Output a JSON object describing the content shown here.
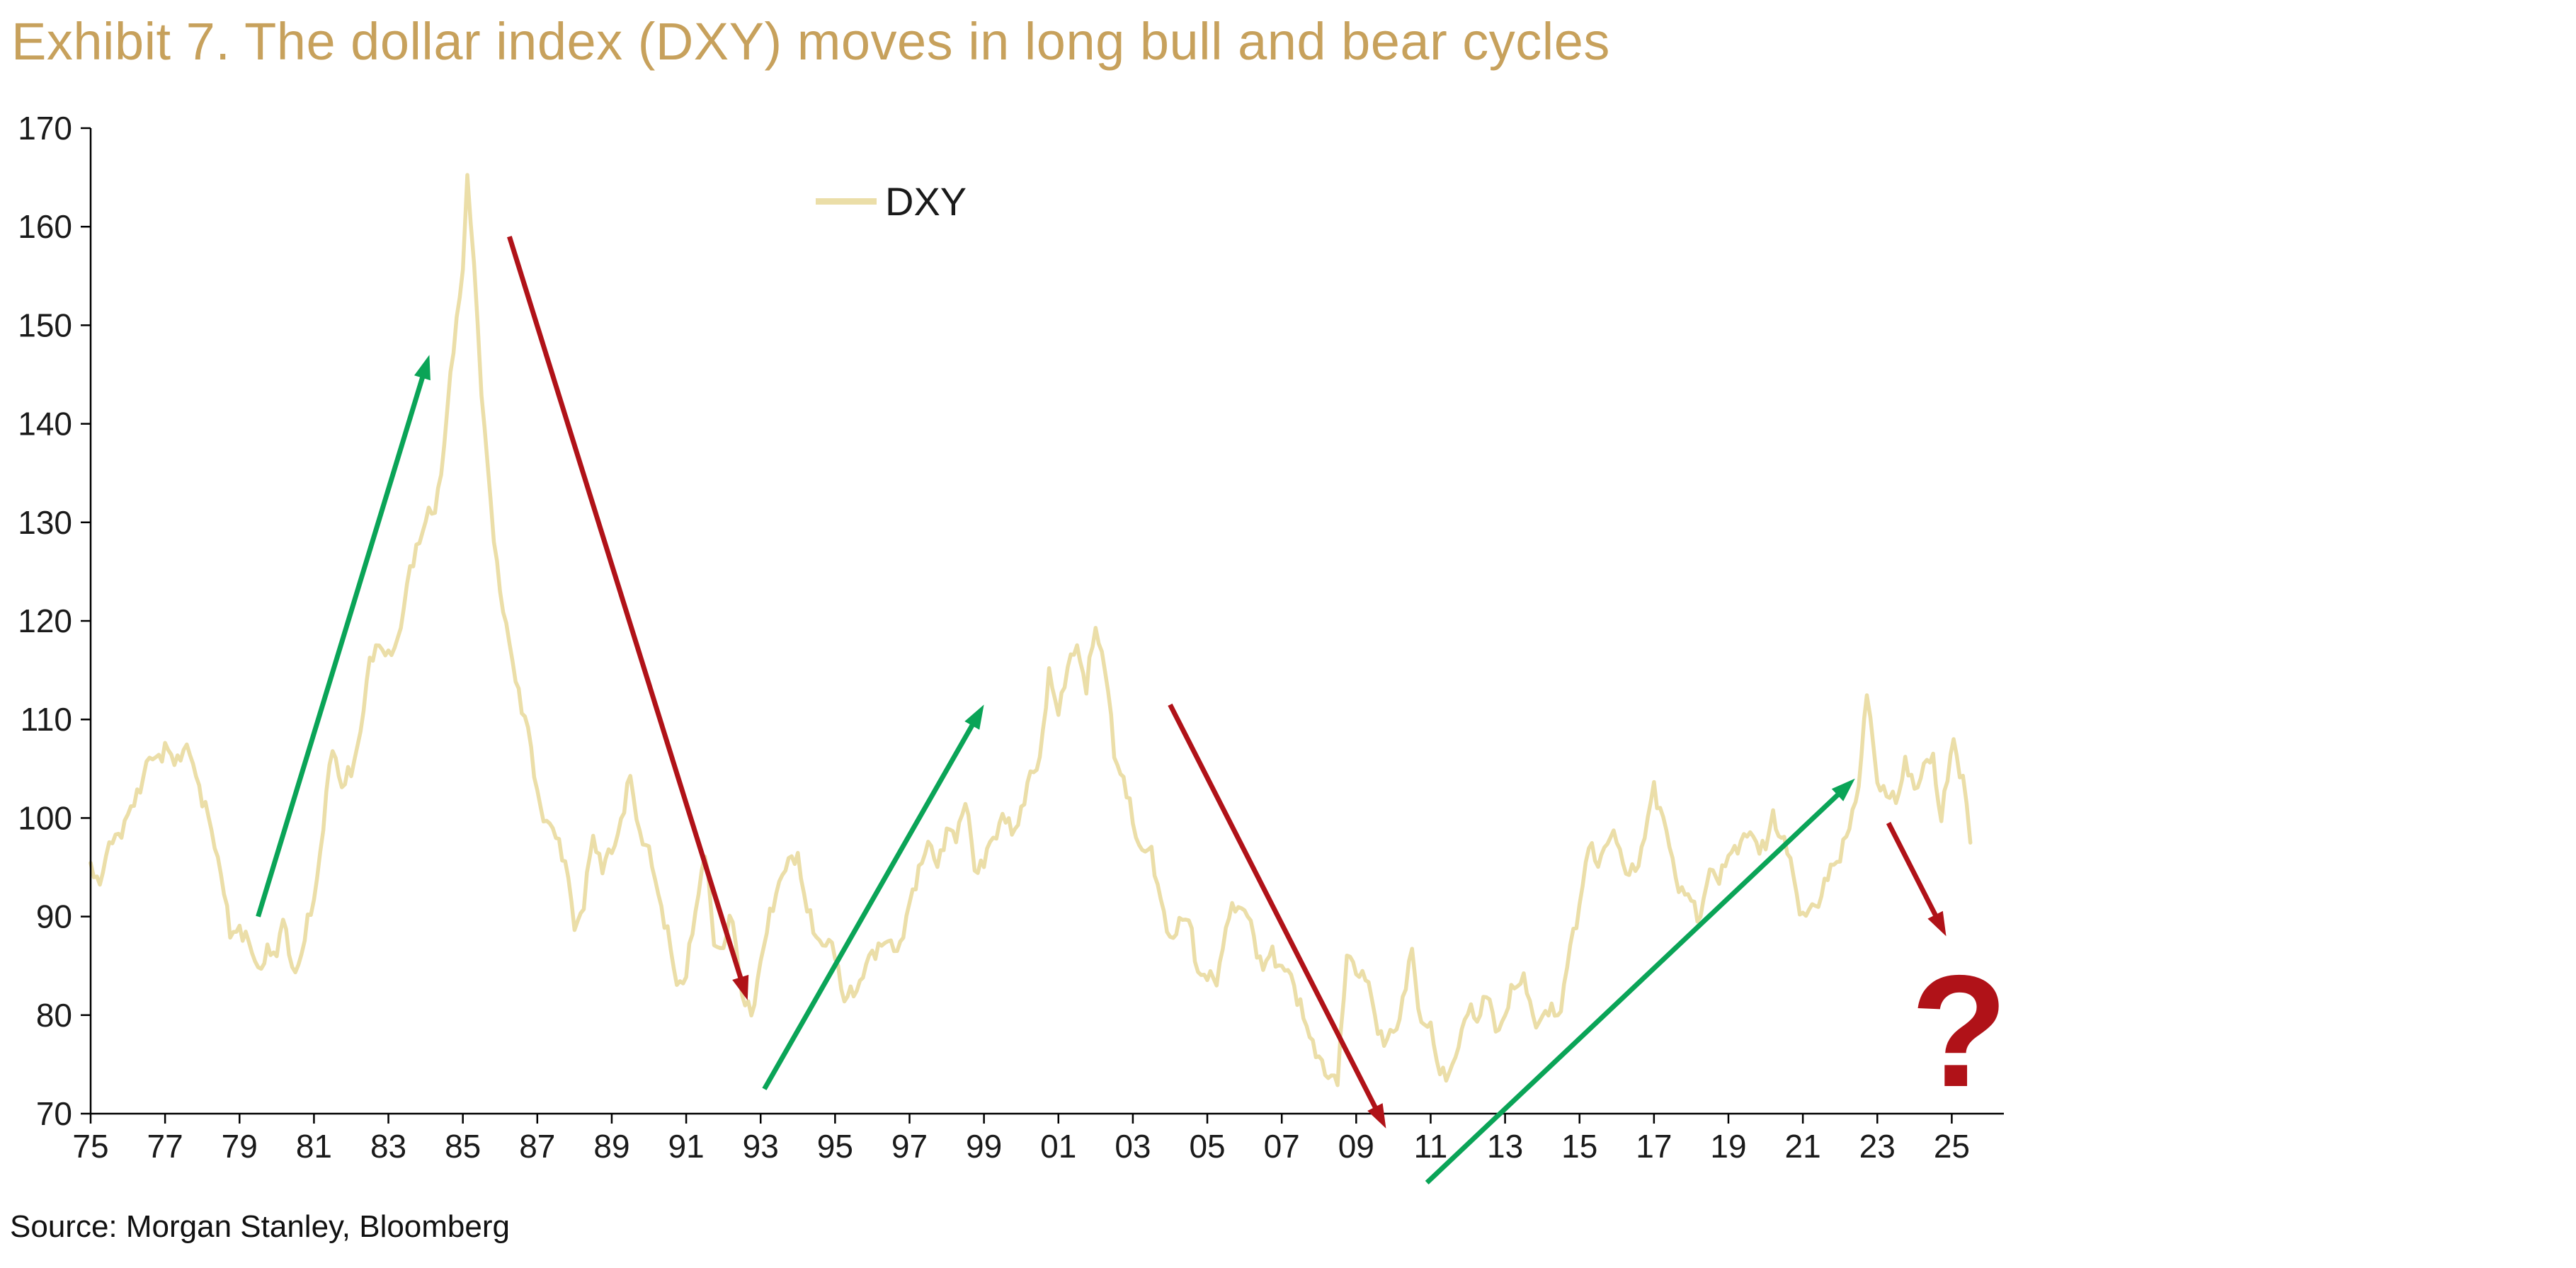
{
  "title": "Exhibit 7. The dollar index (DXY) moves in long bull and bear cycles",
  "source": "Source: Morgan Stanley, Bloomberg",
  "legend": {
    "label": "DXY"
  },
  "colors": {
    "title": "#C7A15C",
    "line": "#EBDEA8",
    "bull": "#0AA457",
    "bear": "#B01218",
    "axis": "#000000",
    "text": "#1A1A1A"
  },
  "chart_data": {
    "type": "line",
    "title": "Exhibit 7. The dollar index (DXY) moves in long bull and bear cycles",
    "xlabel": "",
    "ylabel": "",
    "xlim": [
      1975,
      2026.4
    ],
    "ylim": [
      70,
      170
    ],
    "grid": false,
    "legend_position": "top-center",
    "x_ticks": [
      "75",
      "77",
      "79",
      "81",
      "83",
      "85",
      "87",
      "89",
      "91",
      "93",
      "95",
      "97",
      "99",
      "01",
      "03",
      "05",
      "07",
      "09",
      "11",
      "13",
      "15",
      "17",
      "19",
      "21",
      "23",
      "25"
    ],
    "x_tick_years": [
      1975,
      1977,
      1979,
      1981,
      1983,
      1985,
      1987,
      1989,
      1991,
      1993,
      1995,
      1997,
      1999,
      2001,
      2003,
      2005,
      2007,
      2009,
      2011,
      2013,
      2015,
      2017,
      2019,
      2021,
      2023,
      2025
    ],
    "y_ticks": [
      70,
      80,
      90,
      100,
      110,
      120,
      130,
      140,
      150,
      160,
      170
    ],
    "series": [
      {
        "name": "DXY",
        "points": [
          [
            1975.0,
            95.0
          ],
          [
            1975.17,
            93.2
          ],
          [
            1975.33,
            94.0
          ],
          [
            1975.5,
            96.5
          ],
          [
            1975.67,
            98.5
          ],
          [
            1975.83,
            99.5
          ],
          [
            1976.0,
            100.5
          ],
          [
            1976.25,
            102.5
          ],
          [
            1976.5,
            104.5
          ],
          [
            1976.75,
            106.0
          ],
          [
            1977.0,
            107.5
          ],
          [
            1977.25,
            106.3
          ],
          [
            1977.5,
            107.0
          ],
          [
            1977.75,
            104.8
          ],
          [
            1978.0,
            102.0
          ],
          [
            1978.25,
            99.0
          ],
          [
            1978.5,
            95.5
          ],
          [
            1978.75,
            87.5
          ],
          [
            1979.0,
            88.5
          ],
          [
            1979.25,
            86.8
          ],
          [
            1979.5,
            85.6
          ],
          [
            1979.75,
            86.5
          ],
          [
            1980.0,
            86.0
          ],
          [
            1980.17,
            89.8
          ],
          [
            1980.33,
            85.0
          ],
          [
            1980.5,
            84.3
          ],
          [
            1980.75,
            88.5
          ],
          [
            1981.0,
            92.0
          ],
          [
            1981.25,
            99.0
          ],
          [
            1981.5,
            106.5
          ],
          [
            1981.75,
            103.5
          ],
          [
            1982.0,
            105.0
          ],
          [
            1982.25,
            109.5
          ],
          [
            1982.5,
            115.0
          ],
          [
            1982.75,
            117.5
          ],
          [
            1983.0,
            116.0
          ],
          [
            1983.25,
            119.0
          ],
          [
            1983.5,
            123.5
          ],
          [
            1983.75,
            127.0
          ],
          [
            1984.0,
            129.5
          ],
          [
            1984.25,
            131.5
          ],
          [
            1984.5,
            138.5
          ],
          [
            1984.75,
            148.0
          ],
          [
            1985.0,
            155.5
          ],
          [
            1985.12,
            163.5
          ],
          [
            1985.3,
            156.0
          ],
          [
            1985.5,
            144.0
          ],
          [
            1985.75,
            132.0
          ],
          [
            1986.0,
            123.5
          ],
          [
            1986.25,
            116.5
          ],
          [
            1986.5,
            112.5
          ],
          [
            1986.75,
            109.0
          ],
          [
            1987.0,
            103.5
          ],
          [
            1987.25,
            99.0
          ],
          [
            1987.5,
            98.0
          ],
          [
            1987.75,
            95.0
          ],
          [
            1988.0,
            89.5
          ],
          [
            1988.25,
            92.0
          ],
          [
            1988.5,
            98.0
          ],
          [
            1988.75,
            94.5
          ],
          [
            1989.0,
            96.0
          ],
          [
            1989.25,
            100.5
          ],
          [
            1989.5,
            104.5
          ],
          [
            1989.75,
            98.5
          ],
          [
            1990.0,
            95.5
          ],
          [
            1990.25,
            92.5
          ],
          [
            1990.5,
            88.5
          ],
          [
            1990.75,
            84.0
          ],
          [
            1991.0,
            83.5
          ],
          [
            1991.25,
            90.0
          ],
          [
            1991.5,
            96.5
          ],
          [
            1991.75,
            88.0
          ],
          [
            1992.0,
            87.5
          ],
          [
            1992.25,
            89.5
          ],
          [
            1992.5,
            81.5
          ],
          [
            1992.75,
            79.5
          ],
          [
            1993.0,
            86.5
          ],
          [
            1993.25,
            90.0
          ],
          [
            1993.5,
            93.5
          ],
          [
            1993.75,
            94.5
          ],
          [
            1994.0,
            96.5
          ],
          [
            1994.25,
            91.0
          ],
          [
            1994.5,
            88.5
          ],
          [
            1994.75,
            86.5
          ],
          [
            1995.0,
            86.0
          ],
          [
            1995.25,
            81.5
          ],
          [
            1995.5,
            83.0
          ],
          [
            1995.75,
            84.5
          ],
          [
            1996.0,
            85.5
          ],
          [
            1996.25,
            87.0
          ],
          [
            1996.5,
            87.0
          ],
          [
            1996.75,
            88.0
          ],
          [
            1997.0,
            91.0
          ],
          [
            1997.25,
            94.5
          ],
          [
            1997.5,
            96.5
          ],
          [
            1997.75,
            96.0
          ],
          [
            1998.0,
            99.0
          ],
          [
            1998.25,
            98.5
          ],
          [
            1998.5,
            101.0
          ],
          [
            1998.75,
            94.5
          ],
          [
            1999.0,
            96.0
          ],
          [
            1999.25,
            98.5
          ],
          [
            1999.5,
            100.5
          ],
          [
            1999.75,
            97.5
          ],
          [
            2000.0,
            100.5
          ],
          [
            2000.25,
            104.5
          ],
          [
            2000.5,
            107.0
          ],
          [
            2000.75,
            114.0
          ],
          [
            2001.0,
            110.5
          ],
          [
            2001.25,
            114.5
          ],
          [
            2001.5,
            118.5
          ],
          [
            2001.75,
            113.5
          ],
          [
            2002.0,
            119.5
          ],
          [
            2002.25,
            114.5
          ],
          [
            2002.5,
            106.5
          ],
          [
            2002.75,
            104.5
          ],
          [
            2003.0,
            100.0
          ],
          [
            2003.25,
            96.5
          ],
          [
            2003.5,
            95.5
          ],
          [
            2003.75,
            92.0
          ],
          [
            2004.0,
            87.5
          ],
          [
            2004.25,
            90.5
          ],
          [
            2004.5,
            89.0
          ],
          [
            2004.75,
            84.0
          ],
          [
            2005.0,
            83.5
          ],
          [
            2005.25,
            84.5
          ],
          [
            2005.5,
            89.0
          ],
          [
            2005.75,
            91.0
          ],
          [
            2006.0,
            90.0
          ],
          [
            2006.25,
            88.0
          ],
          [
            2006.5,
            85.5
          ],
          [
            2006.75,
            86.5
          ],
          [
            2007.0,
            84.5
          ],
          [
            2007.25,
            83.0
          ],
          [
            2007.5,
            81.5
          ],
          [
            2007.75,
            78.0
          ],
          [
            2008.0,
            76.5
          ],
          [
            2008.25,
            72.5
          ],
          [
            2008.5,
            73.5
          ],
          [
            2008.75,
            86.0
          ],
          [
            2009.0,
            85.5
          ],
          [
            2009.25,
            84.0
          ],
          [
            2009.5,
            79.5
          ],
          [
            2009.75,
            76.5
          ],
          [
            2010.0,
            78.5
          ],
          [
            2010.25,
            82.0
          ],
          [
            2010.5,
            86.5
          ],
          [
            2010.75,
            78.5
          ],
          [
            2011.0,
            78.0
          ],
          [
            2011.25,
            75.0
          ],
          [
            2011.5,
            74.0
          ],
          [
            2011.75,
            77.5
          ],
          [
            2012.0,
            79.5
          ],
          [
            2012.25,
            79.5
          ],
          [
            2012.5,
            82.5
          ],
          [
            2012.75,
            79.5
          ],
          [
            2013.0,
            79.5
          ],
          [
            2013.25,
            82.5
          ],
          [
            2013.5,
            83.5
          ],
          [
            2013.75,
            80.0
          ],
          [
            2014.0,
            80.5
          ],
          [
            2014.25,
            80.0
          ],
          [
            2014.5,
            80.0
          ],
          [
            2014.75,
            86.5
          ],
          [
            2015.0,
            92.0
          ],
          [
            2015.25,
            97.5
          ],
          [
            2015.5,
            95.5
          ],
          [
            2015.75,
            96.5
          ],
          [
            2016.0,
            98.5
          ],
          [
            2016.25,
            94.5
          ],
          [
            2016.5,
            95.5
          ],
          [
            2016.75,
            97.5
          ],
          [
            2017.0,
            102.5
          ],
          [
            2017.25,
            100.0
          ],
          [
            2017.5,
            96.0
          ],
          [
            2017.75,
            93.0
          ],
          [
            2018.0,
            91.0
          ],
          [
            2018.25,
            89.5
          ],
          [
            2018.5,
            94.5
          ],
          [
            2018.75,
            95.0
          ],
          [
            2019.0,
            96.0
          ],
          [
            2019.25,
            97.0
          ],
          [
            2019.5,
            97.5
          ],
          [
            2019.75,
            98.0
          ],
          [
            2020.0,
            97.5
          ],
          [
            2020.2,
            100.5
          ],
          [
            2020.5,
            97.0
          ],
          [
            2020.75,
            93.5
          ],
          [
            2021.0,
            90.0
          ],
          [
            2021.25,
            91.5
          ],
          [
            2021.5,
            92.5
          ],
          [
            2021.75,
            94.0
          ],
          [
            2022.0,
            96.0
          ],
          [
            2022.25,
            99.0
          ],
          [
            2022.5,
            104.5
          ],
          [
            2022.72,
            112.5
          ],
          [
            2023.0,
            103.5
          ],
          [
            2023.25,
            101.5
          ],
          [
            2023.5,
            102.5
          ],
          [
            2023.75,
            106.0
          ],
          [
            2024.0,
            103.0
          ],
          [
            2024.25,
            104.5
          ],
          [
            2024.5,
            105.5
          ],
          [
            2024.72,
            100.5
          ],
          [
            2025.05,
            108.5
          ],
          [
            2025.3,
            103.5
          ],
          [
            2025.5,
            97.5
          ]
        ]
      }
    ],
    "annotations": {
      "bull_arrows": [
        {
          "x1": 1979.5,
          "y1": 90.0,
          "x2": 1984.1,
          "y2": 147.0
        },
        {
          "x1": 1993.1,
          "y1": 72.5,
          "x2": 1999.0,
          "y2": 111.5
        },
        {
          "x1": 2010.9,
          "y1": 63.0,
          "x2": 2022.4,
          "y2": 104.0
        }
      ],
      "bear_arrows": [
        {
          "x1": 1986.25,
          "y1": 159.0,
          "x2": 1992.65,
          "y2": 81.5
        },
        {
          "x1": 2004.0,
          "y1": 111.5,
          "x2": 2009.8,
          "y2": 68.5
        },
        {
          "x1": 2023.3,
          "y1": 99.5,
          "x2": 2024.85,
          "y2": 88.0
        }
      ],
      "question": {
        "text": "?",
        "x": 2025.2,
        "y": 72.8
      }
    }
  }
}
